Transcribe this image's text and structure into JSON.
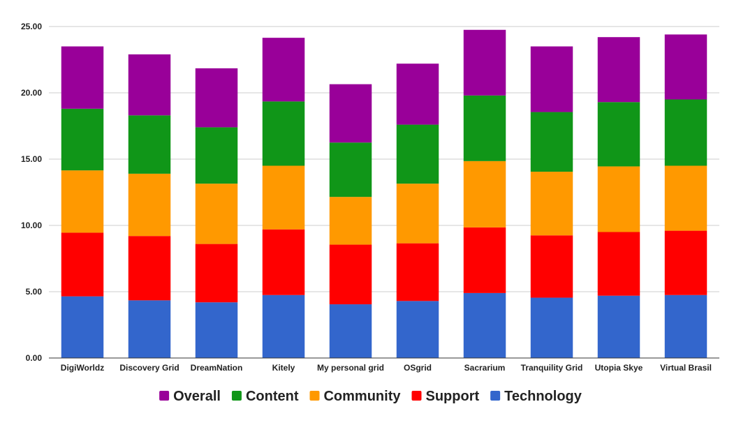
{
  "chart_data": {
    "type": "bar",
    "stacked": true,
    "categories": [
      "DigiWorldz",
      "Discovery Grid",
      "DreamNation",
      "Kitely",
      "My personal grid",
      "OSgrid",
      "Sacrarium",
      "Tranquility Grid",
      "Utopia Skye",
      "Virtual Brasil"
    ],
    "series": [
      {
        "name": "Technology",
        "color": "#3366cc",
        "values": [
          4.65,
          4.35,
          4.2,
          4.75,
          4.05,
          4.3,
          4.9,
          4.55,
          4.7,
          4.75
        ]
      },
      {
        "name": "Support",
        "color": "#ff0000",
        "values": [
          4.8,
          4.85,
          4.4,
          4.95,
          4.5,
          4.35,
          4.95,
          4.7,
          4.8,
          4.85
        ]
      },
      {
        "name": "Community",
        "color": "#ff9900",
        "values": [
          4.7,
          4.7,
          4.55,
          4.8,
          3.6,
          4.5,
          5.0,
          4.8,
          4.95,
          4.9
        ]
      },
      {
        "name": "Content",
        "color": "#109618",
        "values": [
          4.65,
          4.4,
          4.25,
          4.85,
          4.1,
          4.45,
          4.95,
          4.5,
          4.85,
          5.0
        ]
      },
      {
        "name": "Overall",
        "color": "#990099",
        "values": [
          4.7,
          4.6,
          4.45,
          4.8,
          4.4,
          4.6,
          4.95,
          4.95,
          4.9,
          4.9
        ]
      }
    ],
    "legend_order": [
      "Overall",
      "Content",
      "Community",
      "Support",
      "Technology"
    ],
    "y_ticks": [
      "0.00",
      "5.00",
      "10.00",
      "15.00",
      "20.00",
      "25.00"
    ],
    "ylim": [
      0,
      25
    ],
    "grid": true,
    "legend_position": "bottom",
    "title": "",
    "xlabel": "",
    "ylabel": ""
  }
}
